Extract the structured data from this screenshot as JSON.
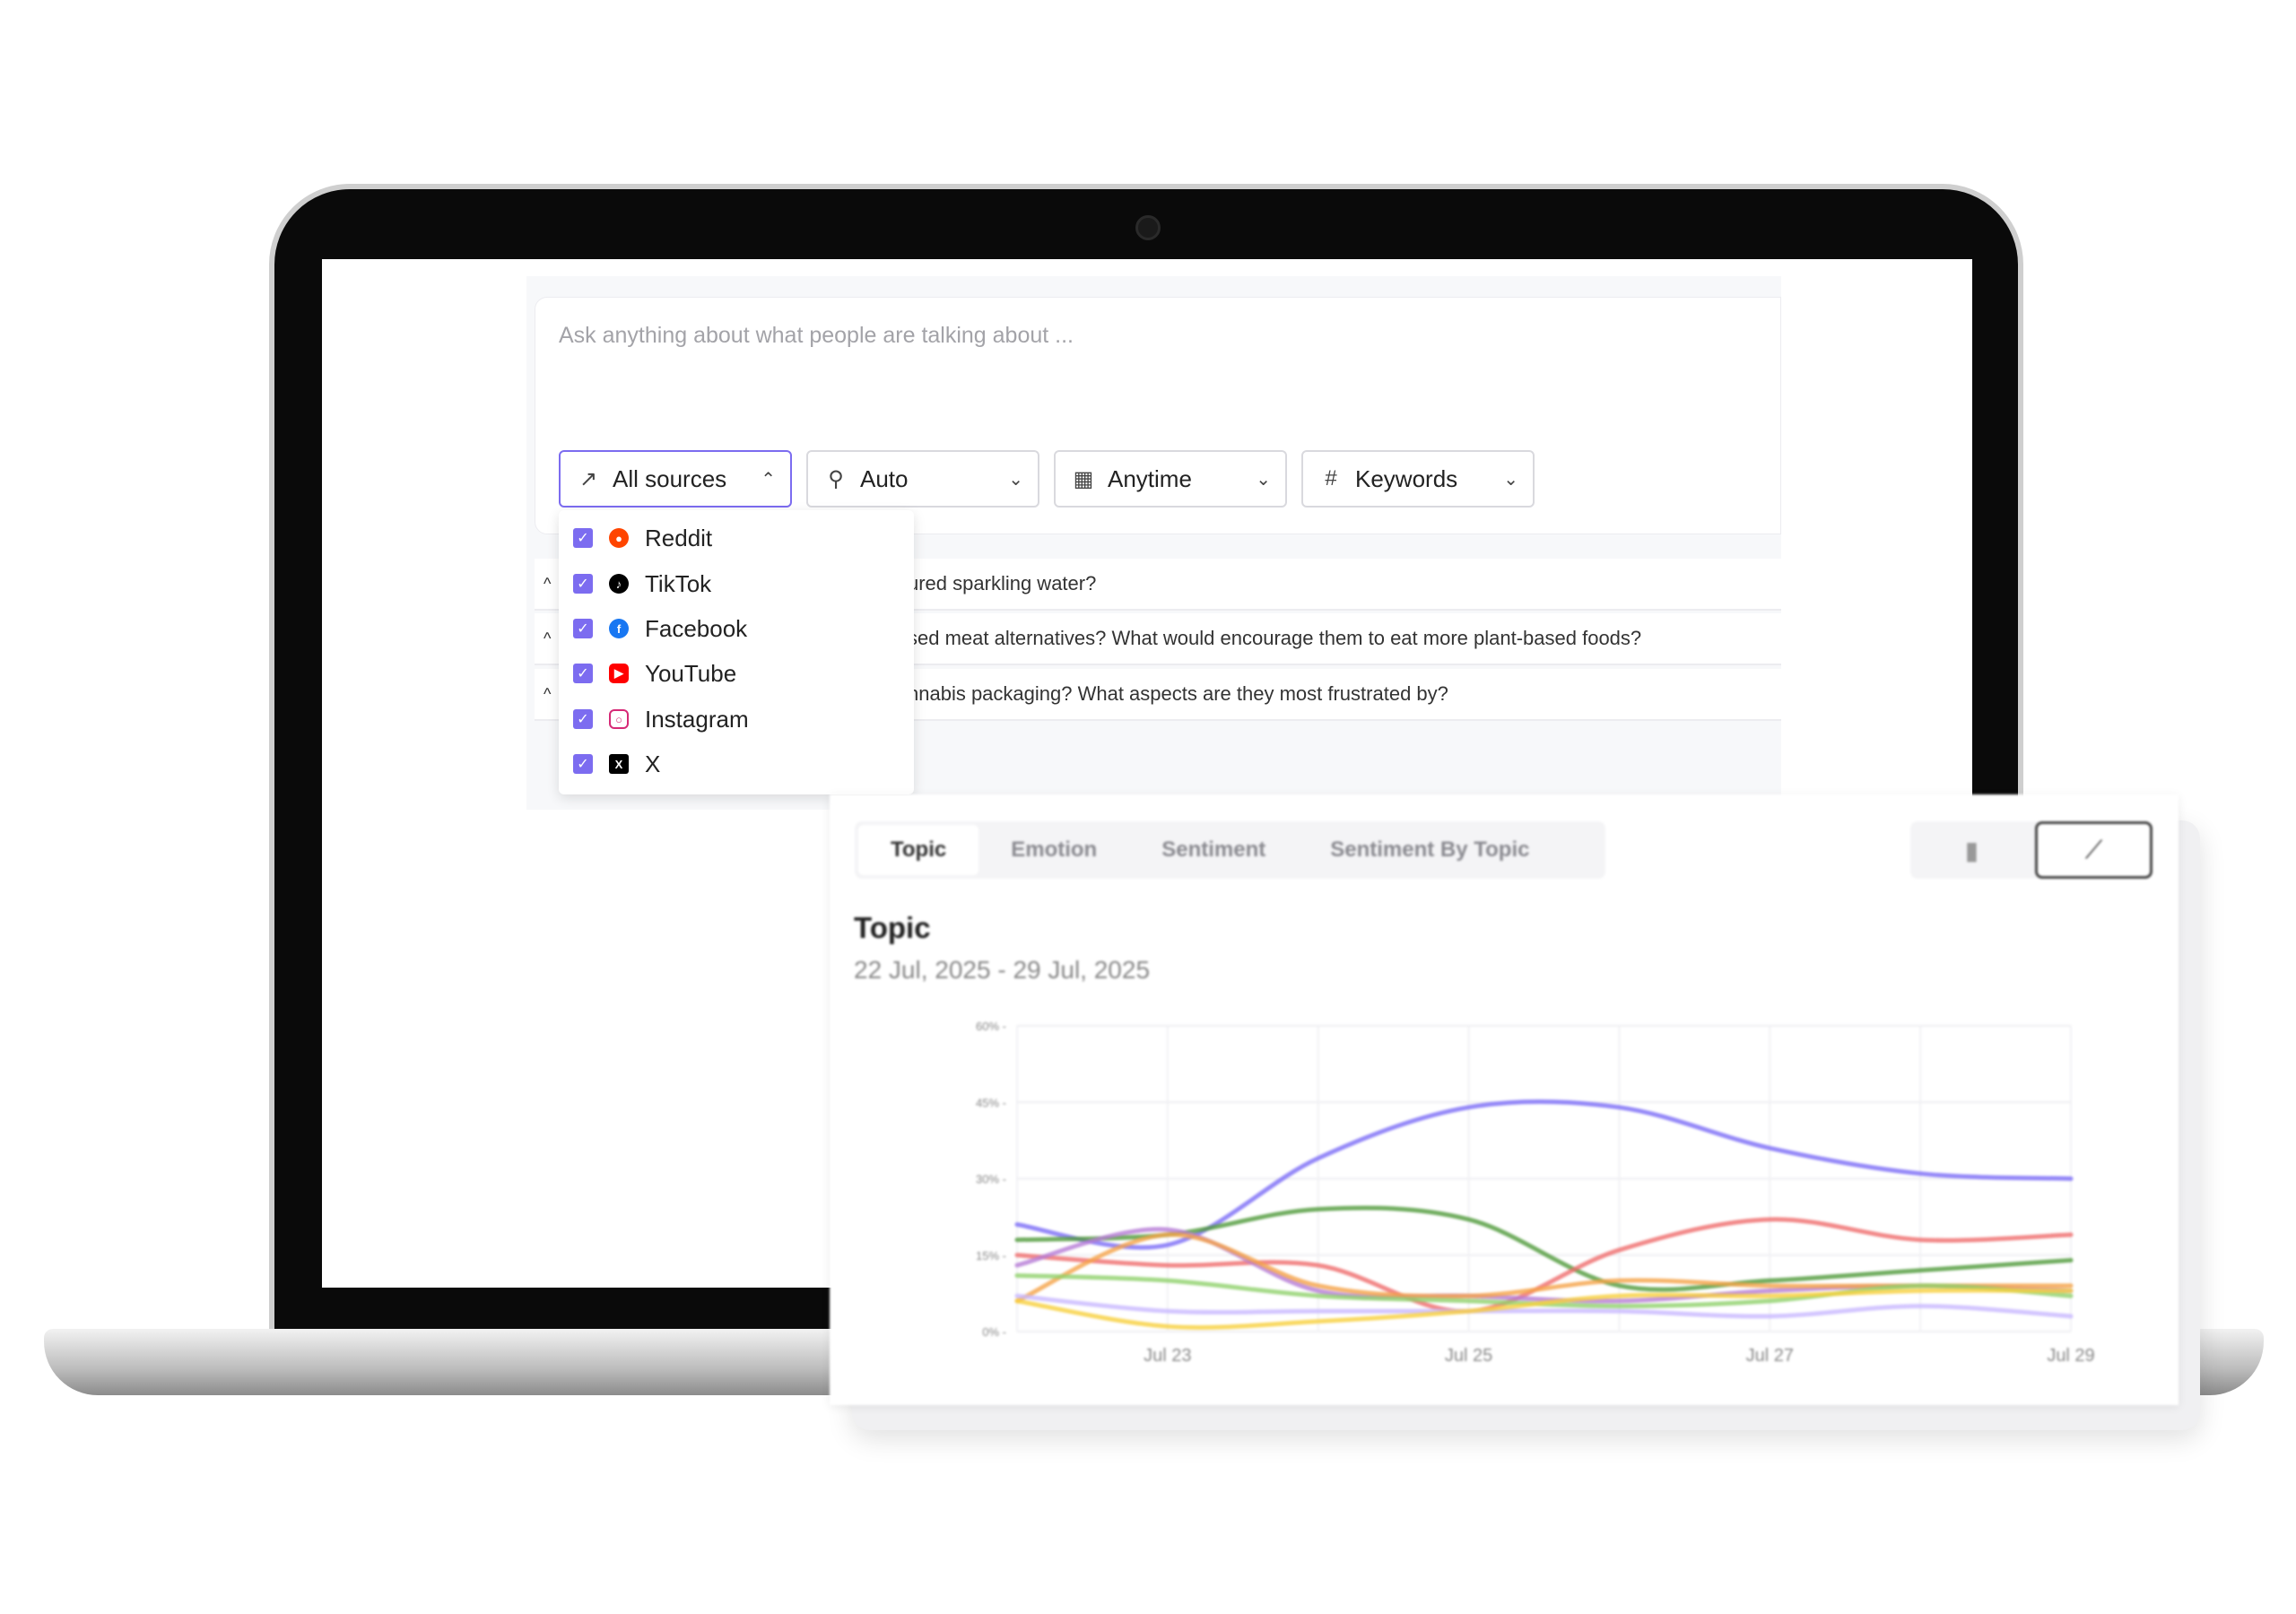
{
  "search": {
    "placeholder": "Ask anything about what people are talking about ..."
  },
  "filters": [
    {
      "label": "All sources",
      "icon": "sparkle-chart-icon",
      "chevron": "^",
      "open": true
    },
    {
      "label": "Auto",
      "icon": "search-icon",
      "chevron": "v"
    },
    {
      "label": "Anytime",
      "icon": "calendar-icon",
      "chevron": "v"
    },
    {
      "label": "Keywords",
      "icon": "hash-icon",
      "chevron": "v"
    }
  ],
  "sources": [
    {
      "label": "Reddit",
      "checked": true,
      "color": "#ff4500"
    },
    {
      "label": "TikTok",
      "checked": true,
      "color": "#000000"
    },
    {
      "label": "Facebook",
      "checked": true,
      "color": "#1877f2"
    },
    {
      "label": "YouTube",
      "checked": true,
      "color": "#ff0000"
    },
    {
      "label": "Instagram",
      "checked": true,
      "color": "#d62976"
    },
    {
      "label": "X",
      "checked": true,
      "color": "#000000"
    }
  ],
  "suggestions": [
    "ured sparkling water?",
    "sed meat alternatives? What would encourage them to eat more plant-based foods?",
    "nnabis packaging? What aspects are they most frustrated by?"
  ],
  "tabs": [
    "Topic",
    "Emotion",
    "Sentiment",
    "Sentiment By Topic"
  ],
  "selected_tab": "Topic",
  "view_modes": [
    "bar-chart-icon",
    "line-chart-icon"
  ],
  "selected_view": "line-chart-icon",
  "chart_title": "Topic",
  "chart_date_range": "22 Jul, 2025 - 29 Jul, 2025",
  "accent_color": "#7c6cf0",
  "chart_data": {
    "type": "line",
    "x": [
      "Jul 22",
      "Jul 23",
      "Jul 24",
      "Jul 25",
      "Jul 26",
      "Jul 27",
      "Jul 28",
      "Jul 29"
    ],
    "xticks": [
      "Jul 23",
      "Jul 25",
      "Jul 27",
      "Jul 29"
    ],
    "yticks": [
      "0%",
      "15%",
      "30%",
      "45%",
      "60%"
    ],
    "ylim": [
      0,
      60
    ],
    "grid": true,
    "series": [
      {
        "color": "#7b6cf6",
        "values": [
          21,
          17,
          34,
          44,
          44,
          36,
          31,
          30
        ]
      },
      {
        "color": "#4f9a3a",
        "values": [
          18,
          19,
          24,
          22,
          9,
          10,
          12,
          14
        ]
      },
      {
        "color": "#ef6b6b",
        "values": [
          15,
          13,
          13,
          4,
          16,
          22,
          18,
          19
        ]
      },
      {
        "color": "#b57ad6",
        "values": [
          13,
          20,
          8,
          7,
          6,
          8,
          9,
          8
        ]
      },
      {
        "color": "#f5a347",
        "values": [
          6,
          19,
          9,
          7,
          10,
          9,
          9,
          9
        ]
      },
      {
        "color": "#8fd16a",
        "values": [
          11,
          10,
          7,
          6,
          5,
          6,
          9,
          7
        ]
      },
      {
        "color": "#c8b8ff",
        "values": [
          7,
          4,
          4,
          4,
          4,
          3,
          5,
          3
        ]
      },
      {
        "color": "#f7cf3c",
        "values": [
          6,
          1,
          2,
          4,
          7,
          7,
          8,
          8
        ]
      }
    ]
  }
}
